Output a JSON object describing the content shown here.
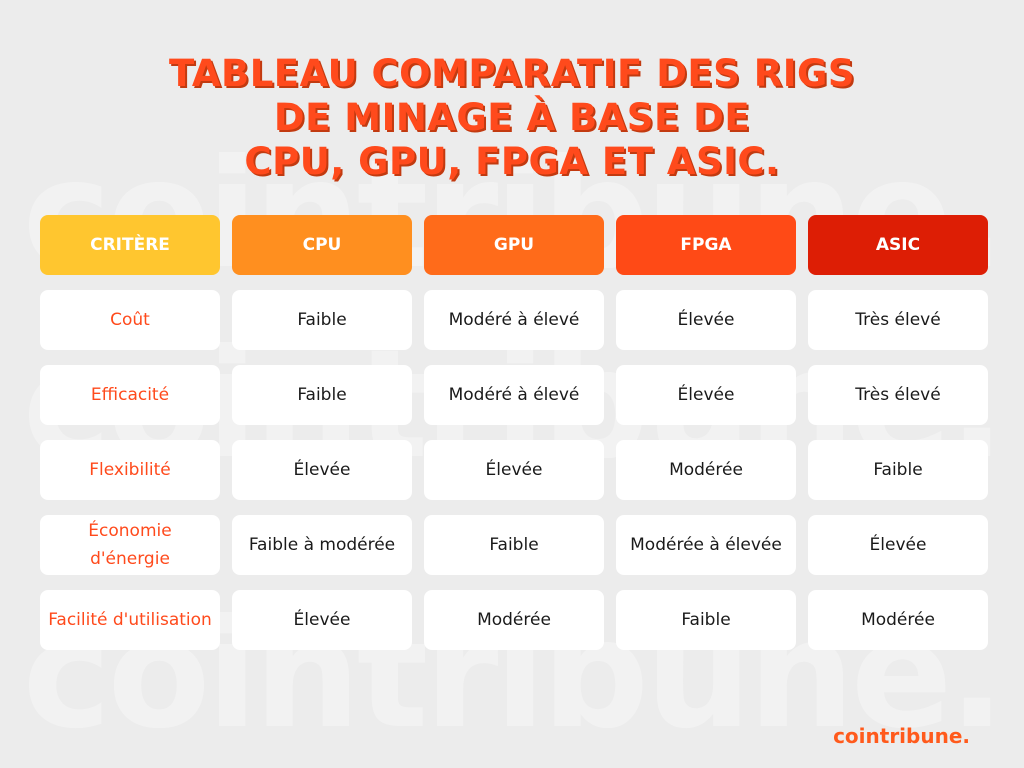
{
  "watermark": {
    "text": "cointribune."
  },
  "title": {
    "lines": [
      "TABLEAU COMPARATIF DES RIGS",
      "DE MINAGE À BASE DE",
      "CPU, GPU, FPGA ET ASIC."
    ],
    "color": "#ff4a1c"
  },
  "table": {
    "headers": [
      {
        "label": "CRITÈRE",
        "color": "#ffc62f"
      },
      {
        "label": "CPU",
        "color": "#ff8f1f"
      },
      {
        "label": "GPU",
        "color": "#ff6b1a"
      },
      {
        "label": "FPGA",
        "color": "#ff4a16"
      },
      {
        "label": "ASIC",
        "color": "#dd1e05"
      }
    ],
    "rows": [
      {
        "criterion": "Coût",
        "cpu": "Faible",
        "gpu": "Modéré à élevé",
        "fpga": "Élevée",
        "asic": "Très élevé"
      },
      {
        "criterion": "Efficacité",
        "cpu": "Faible",
        "gpu": "Modéré à élevé",
        "fpga": "Élevée",
        "asic": "Très élevé"
      },
      {
        "criterion": "Flexibilité",
        "cpu": "Élevée",
        "gpu": "Élevée",
        "fpga": "Modérée",
        "asic": "Faible"
      },
      {
        "criterion": "Économie d'énergie",
        "cpu": "Faible à modérée",
        "gpu": "Faible",
        "fpga": "Modérée à élevée",
        "asic": "Élevée"
      },
      {
        "criterion": "Facilité d'utilisation",
        "cpu": "Élevée",
        "gpu": "Modérée",
        "fpga": "Faible",
        "asic": "Modérée"
      }
    ]
  },
  "brand": {
    "text": "cointribune."
  }
}
